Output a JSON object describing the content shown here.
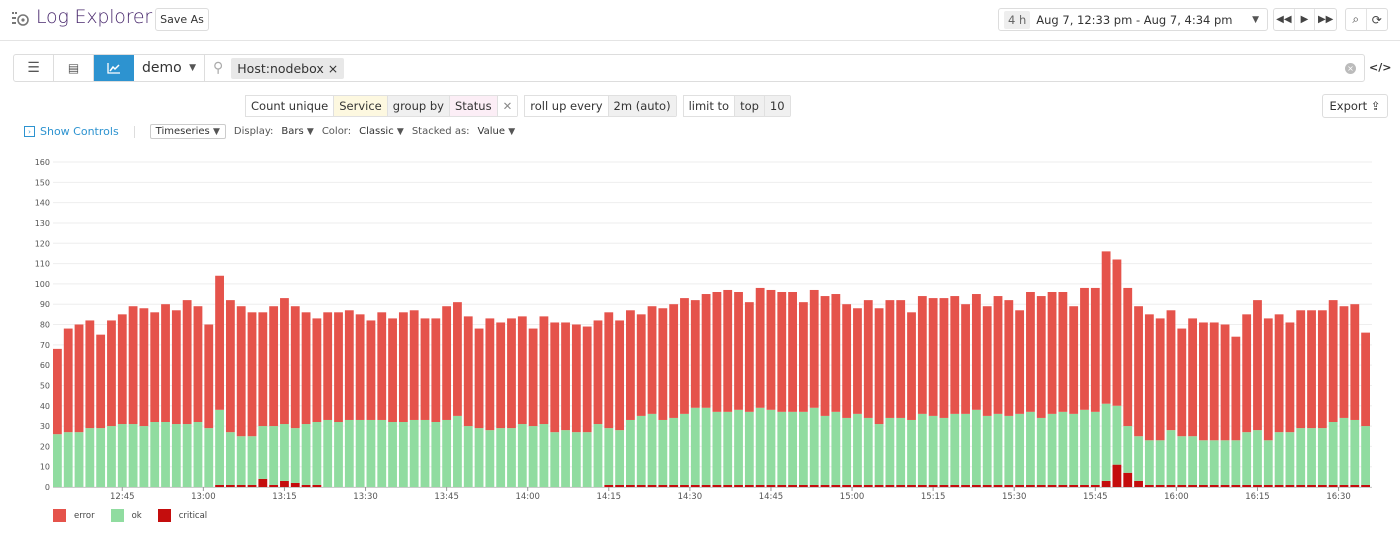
{
  "header": {
    "title": "Log Explorer",
    "save_as": "Save As",
    "time_badge": "4 h",
    "time_range": "Aug 7, 12:33 pm - Aug 7, 4:34 pm"
  },
  "search": {
    "index": "demo",
    "tag": "Host:nodebox",
    "tag_remove": "×"
  },
  "query": {
    "count_unique": "Count unique",
    "service": "Service",
    "group_by": "group by",
    "status": "Status",
    "remove": "✕",
    "roll_up": "roll up every",
    "roll_up_value": "2m (auto)",
    "limit_to": "limit to",
    "top": "top",
    "limit_value": "10"
  },
  "export": "Export",
  "controls": {
    "show_controls": "Show Controls",
    "viz": "Timeseries",
    "display_label": "Display:",
    "display": "Bars",
    "color_label": "Color:",
    "color": "Classic",
    "stacked_label": "Stacked as:",
    "stacked": "Value"
  },
  "colors": {
    "error": "#e5534b",
    "ok": "#90dca0",
    "critical": "#c40d0d",
    "accent": "#2d93d0"
  },
  "chart_data": {
    "type": "bar",
    "stacked": true,
    "title": "",
    "xlabel": "",
    "ylabel": "",
    "ylim": [
      0,
      160
    ],
    "yticks": [
      0,
      10,
      20,
      30,
      40,
      50,
      60,
      70,
      80,
      90,
      100,
      110,
      120,
      130,
      140,
      150,
      160
    ],
    "x_start": "12:33",
    "x_step_minutes": 2,
    "xticks": [
      "12:45",
      "13:00",
      "13:15",
      "13:30",
      "13:45",
      "14:00",
      "14:15",
      "14:30",
      "14:45",
      "15:00",
      "15:15",
      "15:30",
      "15:45",
      "16:00",
      "16:15",
      "16:30"
    ],
    "legend": "bottom-left",
    "grid": true,
    "series": [
      {
        "name": "critical",
        "values": [
          0,
          0,
          0,
          0,
          0,
          0,
          0,
          0,
          0,
          0,
          0,
          0,
          0,
          0,
          0,
          1,
          1,
          1,
          1,
          4,
          1,
          3,
          2,
          1,
          1,
          0,
          0,
          0,
          0,
          0,
          0,
          0,
          0,
          0,
          0,
          0,
          0,
          0,
          0,
          0,
          0,
          0,
          0,
          0,
          0,
          0,
          0,
          0,
          0,
          0,
          0,
          1,
          1,
          1,
          1,
          1,
          1,
          1,
          1,
          1,
          1,
          1,
          1,
          1,
          1,
          1,
          1,
          1,
          1,
          1,
          1,
          1,
          1,
          1,
          1,
          1,
          1,
          1,
          1,
          1,
          1,
          1,
          1,
          1,
          1,
          1,
          1,
          1,
          1,
          1,
          1,
          1,
          1,
          1,
          1,
          1,
          1,
          3,
          11,
          7,
          3,
          1,
          1,
          1,
          1,
          1,
          1,
          1,
          1,
          1,
          1,
          1,
          1,
          1,
          1,
          1,
          1,
          1,
          1,
          1,
          1,
          1
        ]
      },
      {
        "name": "ok",
        "values": [
          26,
          27,
          27,
          29,
          29,
          30,
          31,
          31,
          30,
          32,
          32,
          31,
          31,
          32,
          29,
          37,
          26,
          24,
          24,
          26,
          29,
          28,
          27,
          30,
          31,
          33,
          32,
          33,
          33,
          33,
          33,
          32,
          32,
          33,
          33,
          32,
          33,
          35,
          30,
          29,
          28,
          29,
          29,
          31,
          30,
          31,
          27,
          28,
          27,
          27,
          31,
          28,
          27,
          32,
          34,
          35,
          32,
          33,
          35,
          38,
          38,
          36,
          36,
          37,
          36,
          38,
          37,
          36,
          36,
          36,
          38,
          34,
          36,
          33,
          35,
          33,
          30,
          33,
          33,
          32,
          35,
          34,
          33,
          35,
          35,
          37,
          34,
          35,
          34,
          35,
          36,
          33,
          35,
          36,
          35,
          37,
          36,
          38,
          29,
          23,
          22,
          22,
          22,
          27,
          24,
          24,
          22,
          22,
          22,
          22,
          26,
          27,
          22,
          26,
          26,
          28,
          28,
          28,
          31,
          33,
          32,
          29
        ]
      },
      {
        "name": "error",
        "values": [
          42,
          51,
          53,
          53,
          46,
          52,
          54,
          58,
          58,
          54,
          58,
          56,
          61,
          57,
          51,
          66,
          65,
          64,
          61,
          56,
          59,
          62,
          60,
          55,
          51,
          53,
          54,
          54,
          52,
          49,
          53,
          51,
          54,
          54,
          50,
          51,
          56,
          56,
          54,
          49,
          55,
          52,
          54,
          53,
          48,
          53,
          54,
          53,
          53,
          52,
          51,
          57,
          54,
          54,
          50,
          53,
          55,
          56,
          57,
          53,
          56,
          59,
          60,
          58,
          54,
          59,
          59,
          59,
          59,
          54,
          58,
          59,
          58,
          56,
          52,
          58,
          57,
          58,
          58,
          53,
          58,
          58,
          59,
          58,
          54,
          57,
          54,
          58,
          57,
          51,
          59,
          60,
          60,
          59,
          53,
          60,
          61,
          75,
          72,
          68,
          64,
          62,
          60,
          59,
          53,
          58,
          58,
          58,
          57,
          51,
          58,
          64,
          60,
          58,
          54,
          58,
          58,
          58,
          60,
          55,
          57,
          46
        ]
      }
    ]
  }
}
